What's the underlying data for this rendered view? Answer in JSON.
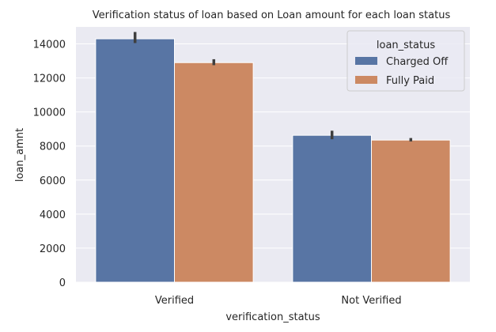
{
  "chart_data": {
    "type": "bar",
    "title": "Verification status of loan based on Loan amount for each loan status",
    "xlabel": "verification_status",
    "ylabel": "loan_amnt",
    "categories": [
      "Verified",
      "Not Verified"
    ],
    "ylim": [
      0,
      15000
    ],
    "yticks": [
      0,
      2000,
      4000,
      6000,
      8000,
      10000,
      12000,
      14000
    ],
    "series": [
      {
        "name": "Charged Off",
        "color": "#5875a4",
        "values": [
          14300,
          8630
        ],
        "ci_low": [
          14050,
          8400
        ],
        "ci_high": [
          14700,
          8900
        ]
      },
      {
        "name": "Fully Paid",
        "color": "#cc8963",
        "values": [
          12900,
          8350
        ],
        "ci_low": [
          12750,
          8270
        ],
        "ci_high": [
          13100,
          8470
        ]
      }
    ],
    "legend": {
      "title": "loan_status",
      "position": "top-right"
    },
    "grid": true,
    "background": "#eaeaf2",
    "gridColor": "#ffffff",
    "errorbarColor": "#3f3f3f"
  }
}
